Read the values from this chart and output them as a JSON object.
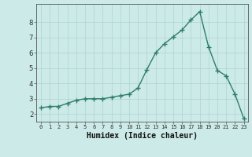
{
  "x": [
    0,
    1,
    2,
    3,
    4,
    5,
    6,
    7,
    8,
    9,
    10,
    11,
    12,
    13,
    14,
    15,
    16,
    17,
    18,
    19,
    20,
    21,
    22,
    23
  ],
  "y": [
    2.4,
    2.5,
    2.5,
    2.7,
    2.9,
    3.0,
    3.0,
    3.0,
    3.1,
    3.2,
    3.3,
    3.7,
    4.9,
    6.0,
    6.6,
    7.05,
    7.5,
    8.15,
    8.7,
    6.4,
    4.85,
    4.5,
    3.3,
    1.7
  ],
  "xlabel": "Humidex (Indice chaleur)",
  "line_color": "#2e7d6e",
  "marker": "+",
  "bg_color": "#cceae7",
  "grid_color": "#aed4d0",
  "axis_color": "#555555",
  "tick_label_color": "#333333",
  "xlabel_color": "#111111",
  "ylim": [
    1.5,
    9.2
  ],
  "xlim": [
    -0.5,
    23.5
  ],
  "yticks": [
    2,
    3,
    4,
    5,
    6,
    7,
    8
  ],
  "xticks": [
    0,
    1,
    2,
    3,
    4,
    5,
    6,
    7,
    8,
    9,
    10,
    11,
    12,
    13,
    14,
    15,
    16,
    17,
    18,
    19,
    20,
    21,
    22,
    23
  ]
}
